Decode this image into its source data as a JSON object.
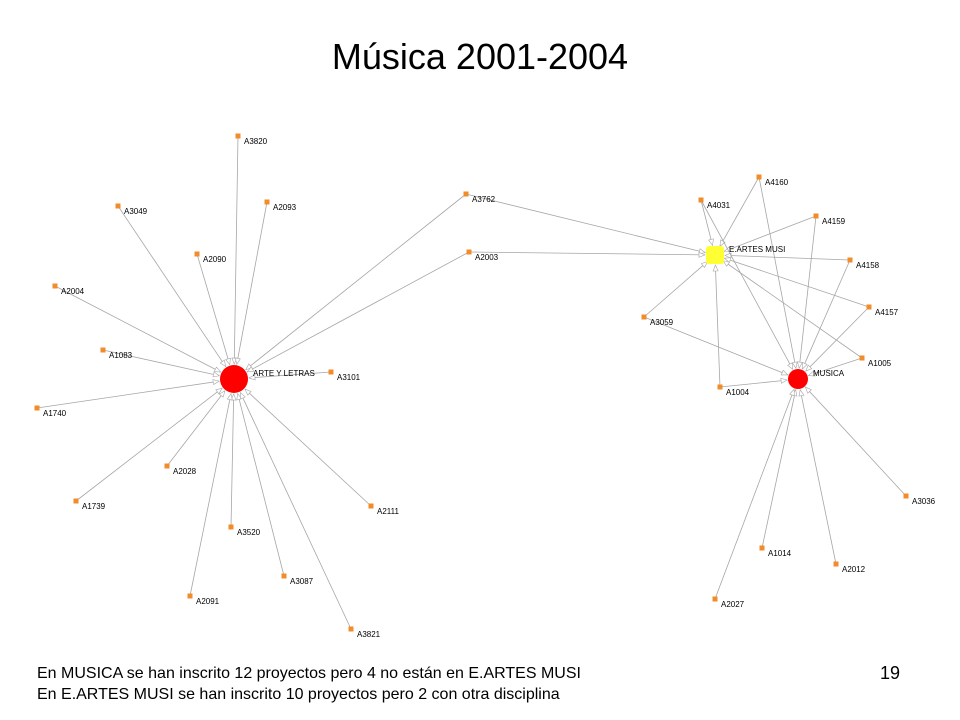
{
  "title": "Música 2001-2004",
  "page_number": "19",
  "notes": [
    "En MUSICA se han inscrito 12 proyectos pero 4 no están en E.ARTES MUSI",
    "En E.ARTES MUSI se han inscrito 10 proyectos pero 2 con otra disciplina"
  ],
  "colors": {
    "hub": "#ff0000",
    "school": "#ffff33",
    "project": "#f28c28",
    "edge": "#a6a6a6"
  },
  "graph": {
    "hubs": [
      {
        "id": "ARTE Y LETRAS",
        "label": "ARTE Y LETRAS",
        "kind": "hub"
      },
      {
        "id": "MUSICA",
        "label": "MUSICA",
        "kind": "hub"
      },
      {
        "id": "E.ARTES MUSI",
        "label": "E.ARTES MUSI",
        "kind": "school"
      }
    ],
    "projects": [
      {
        "id": "A3820"
      },
      {
        "id": "A3049"
      },
      {
        "id": "A2093"
      },
      {
        "id": "A2090"
      },
      {
        "id": "A2004"
      },
      {
        "id": "A1083"
      },
      {
        "id": "A1740"
      },
      {
        "id": "A3101"
      },
      {
        "id": "A2028"
      },
      {
        "id": "A1739"
      },
      {
        "id": "A3520"
      },
      {
        "id": "A2111"
      },
      {
        "id": "A2091"
      },
      {
        "id": "A3087"
      },
      {
        "id": "A3821"
      },
      {
        "id": "A3762"
      },
      {
        "id": "A2003"
      },
      {
        "id": "A4160"
      },
      {
        "id": "A4031"
      },
      {
        "id": "A4159"
      },
      {
        "id": "A4158"
      },
      {
        "id": "A3059"
      },
      {
        "id": "A4157"
      },
      {
        "id": "A1005"
      },
      {
        "id": "A1004"
      },
      {
        "id": "A3036"
      },
      {
        "id": "A1014"
      },
      {
        "id": "A2012"
      },
      {
        "id": "A2027"
      }
    ],
    "edges": [
      [
        "A3820",
        "ARTE Y LETRAS"
      ],
      [
        "A3049",
        "ARTE Y LETRAS"
      ],
      [
        "A2093",
        "ARTE Y LETRAS"
      ],
      [
        "A2090",
        "ARTE Y LETRAS"
      ],
      [
        "A2004",
        "ARTE Y LETRAS"
      ],
      [
        "A1083",
        "ARTE Y LETRAS"
      ],
      [
        "A1740",
        "ARTE Y LETRAS"
      ],
      [
        "A3101",
        "ARTE Y LETRAS"
      ],
      [
        "A2028",
        "ARTE Y LETRAS"
      ],
      [
        "A1739",
        "ARTE Y LETRAS"
      ],
      [
        "A3520",
        "ARTE Y LETRAS"
      ],
      [
        "A2111",
        "ARTE Y LETRAS"
      ],
      [
        "A2091",
        "ARTE Y LETRAS"
      ],
      [
        "A3087",
        "ARTE Y LETRAS"
      ],
      [
        "A3821",
        "ARTE Y LETRAS"
      ],
      [
        "A3762",
        "ARTE Y LETRAS"
      ],
      [
        "A2003",
        "ARTE Y LETRAS"
      ],
      [
        "A3762",
        "E.ARTES MUSI"
      ],
      [
        "A2003",
        "E.ARTES MUSI"
      ],
      [
        "A4160",
        "E.ARTES MUSI"
      ],
      [
        "A4031",
        "E.ARTES MUSI"
      ],
      [
        "A4159",
        "E.ARTES MUSI"
      ],
      [
        "A4158",
        "E.ARTES MUSI"
      ],
      [
        "A4157",
        "E.ARTES MUSI"
      ],
      [
        "A1005",
        "E.ARTES MUSI"
      ],
      [
        "A3059",
        "E.ARTES MUSI"
      ],
      [
        "A1004",
        "E.ARTES MUSI"
      ],
      [
        "A4160",
        "MUSICA"
      ],
      [
        "A4031",
        "MUSICA"
      ],
      [
        "A4159",
        "MUSICA"
      ],
      [
        "A4158",
        "MUSICA"
      ],
      [
        "A4157",
        "MUSICA"
      ],
      [
        "A1005",
        "MUSICA"
      ],
      [
        "A3059",
        "MUSICA"
      ],
      [
        "A1004",
        "MUSICA"
      ],
      [
        "A3036",
        "MUSICA"
      ],
      [
        "A1014",
        "MUSICA"
      ],
      [
        "A2012",
        "MUSICA"
      ],
      [
        "A2027",
        "MUSICA"
      ]
    ]
  }
}
